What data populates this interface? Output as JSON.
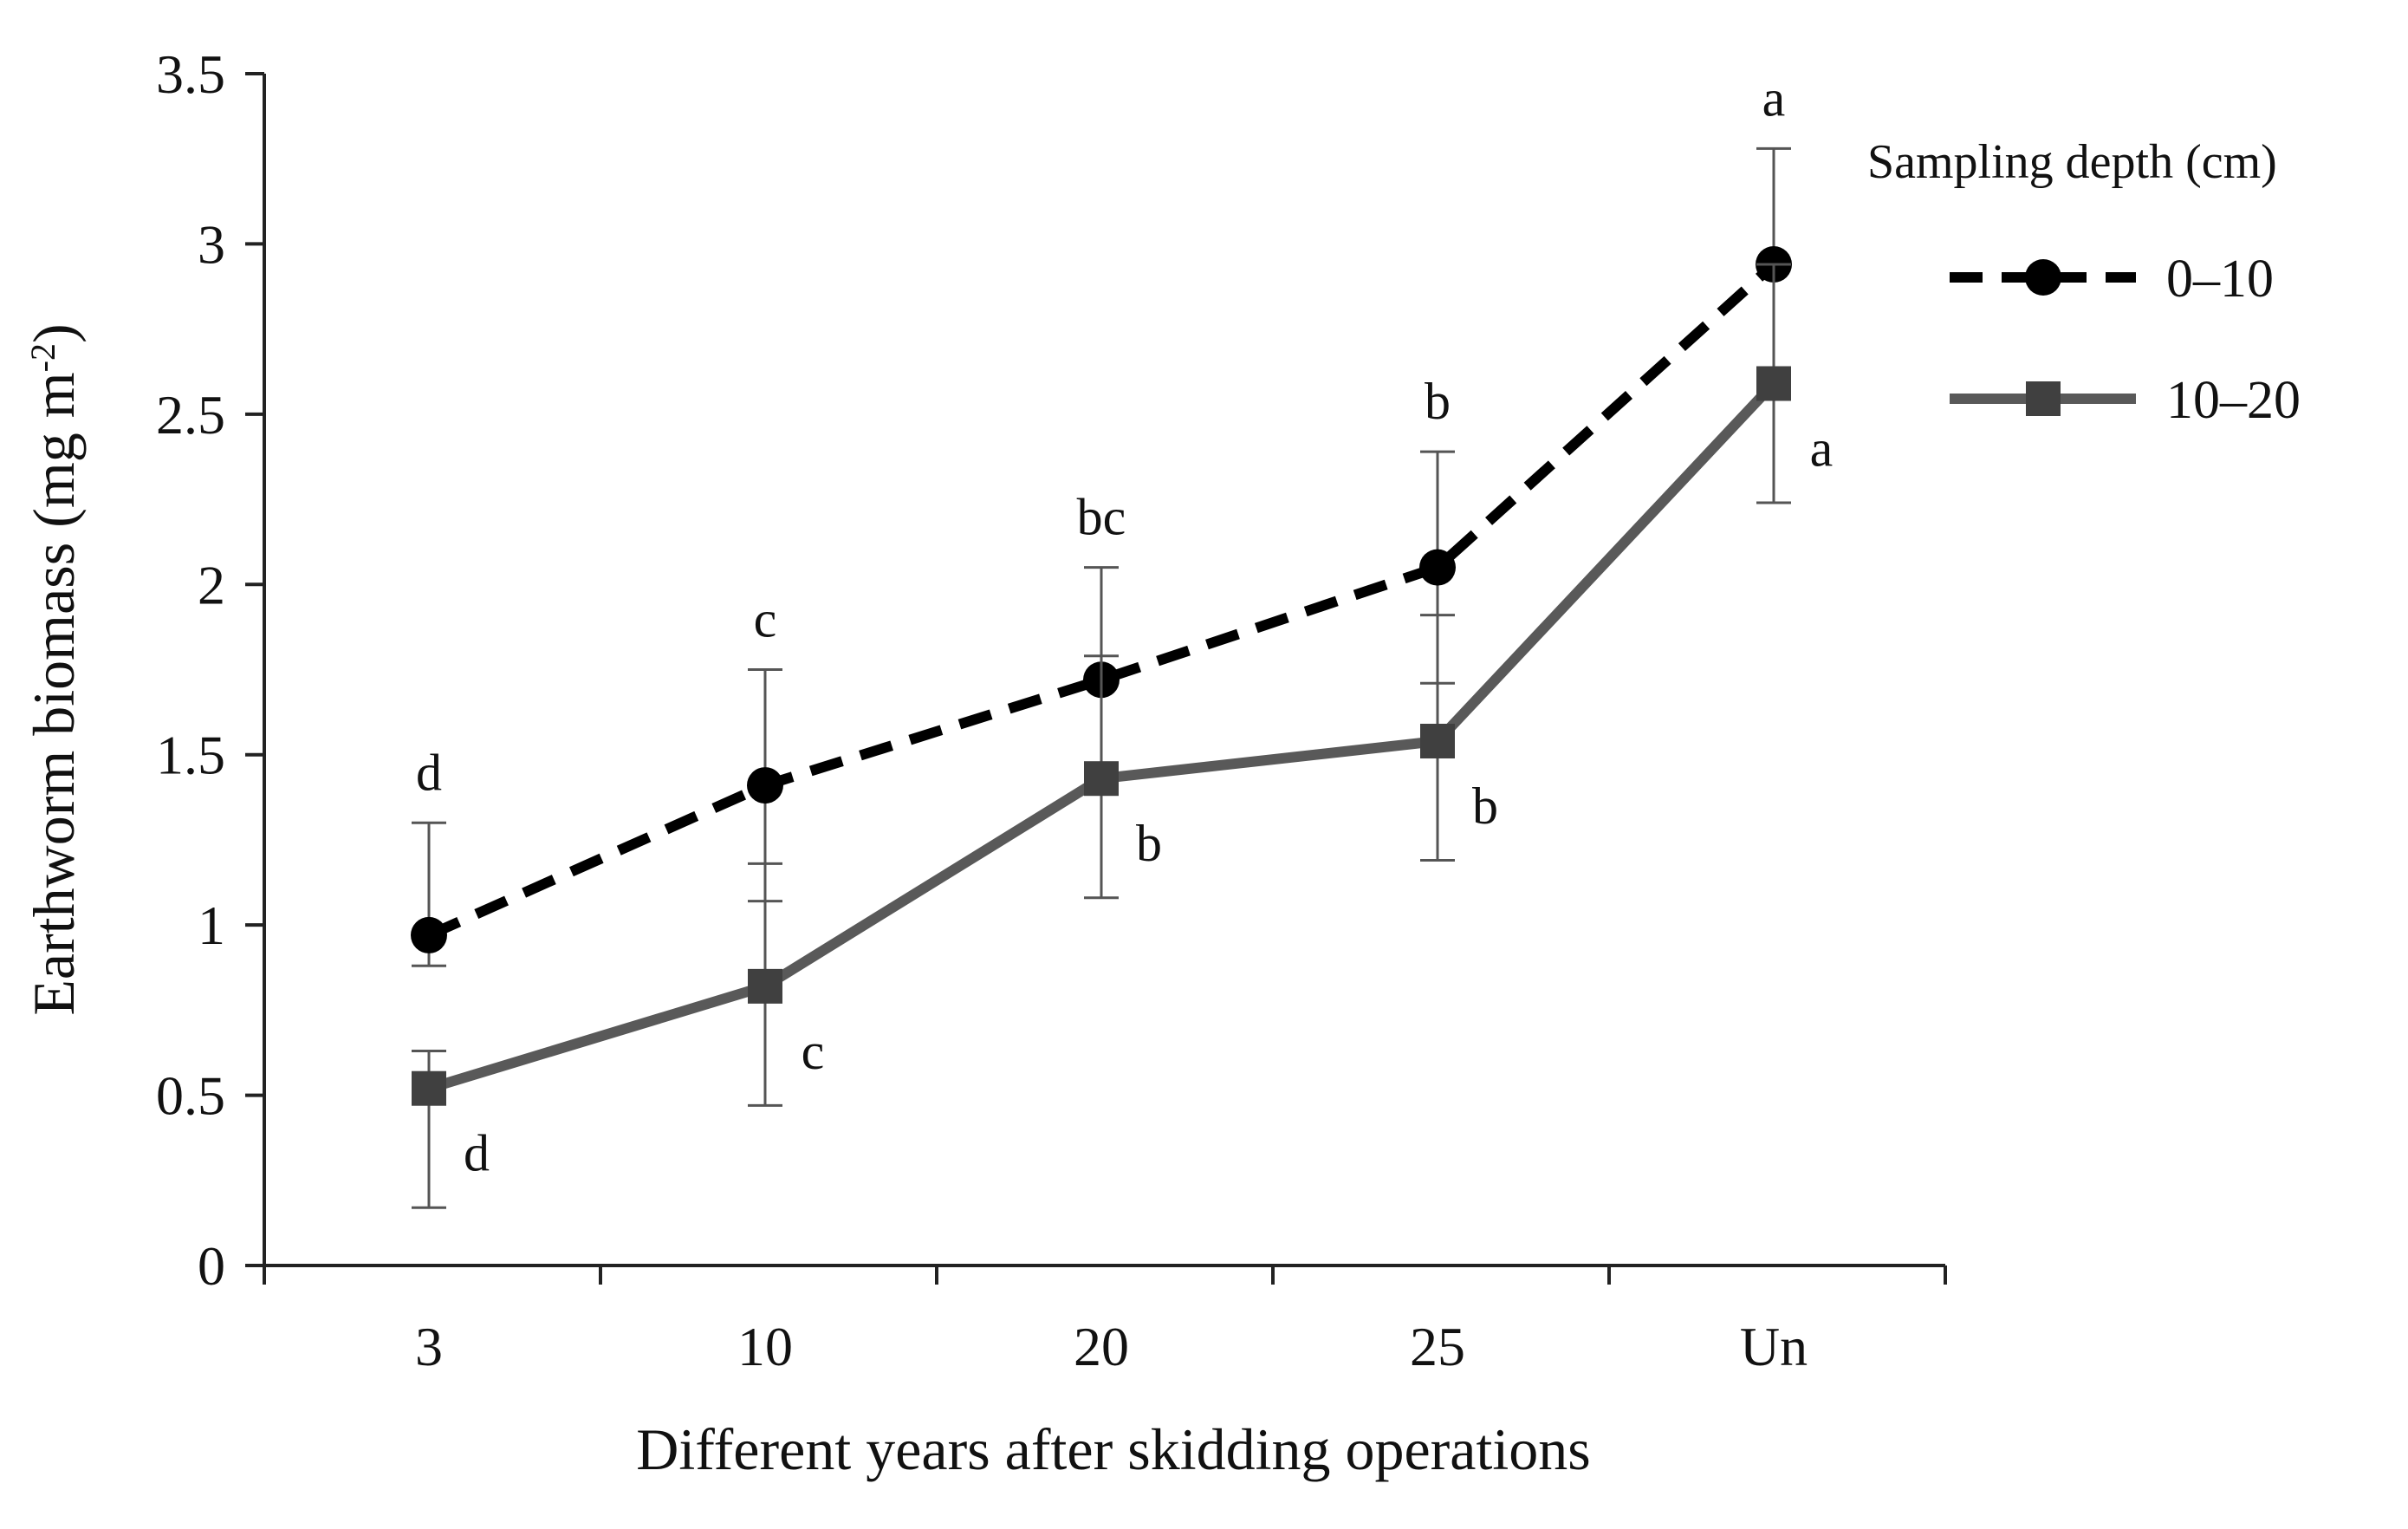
{
  "chart_data": {
    "type": "line",
    "title": "",
    "xlabel": "Different years after skidding operations",
    "ylabel": "Earthworm biomass (mg m",
    "ylabel_sup": "-2",
    "ylabel_close": ")",
    "categories": [
      "3",
      "10",
      "20",
      "25",
      "Un"
    ],
    "ylim": [
      0,
      3.5
    ],
    "yticks": [
      "0",
      "0.5",
      "1",
      "1.5",
      "2",
      "2.5",
      "3",
      "3.5"
    ],
    "ytick_values": [
      0,
      0.5,
      1,
      1.5,
      2,
      2.5,
      3,
      3.5
    ],
    "legend": {
      "title": "Sampling depth (cm)",
      "position": "right"
    },
    "series": [
      {
        "name": "0–10",
        "style": "dashed",
        "marker": "circle",
        "color": "#000000",
        "values": [
          0.97,
          1.41,
          1.72,
          2.05,
          2.94
        ],
        "err_low": [
          0.88,
          1.07,
          1.39,
          1.71,
          2.6
        ],
        "err_high": [
          1.3,
          1.75,
          2.05,
          2.39,
          3.28
        ],
        "sig": [
          "d",
          "c",
          "bc",
          "b",
          "a"
        ]
      },
      {
        "name": "10–20",
        "style": "solid",
        "marker": "square",
        "color": "#595959",
        "values": [
          0.52,
          0.82,
          1.43,
          1.54,
          2.59
        ],
        "err_low": [
          0.17,
          0.47,
          1.08,
          1.19,
          2.24
        ],
        "err_high": [
          0.63,
          1.18,
          1.79,
          1.91,
          2.94
        ],
        "sig": [
          "d",
          "c",
          "b",
          "b",
          "a"
        ]
      }
    ]
  }
}
